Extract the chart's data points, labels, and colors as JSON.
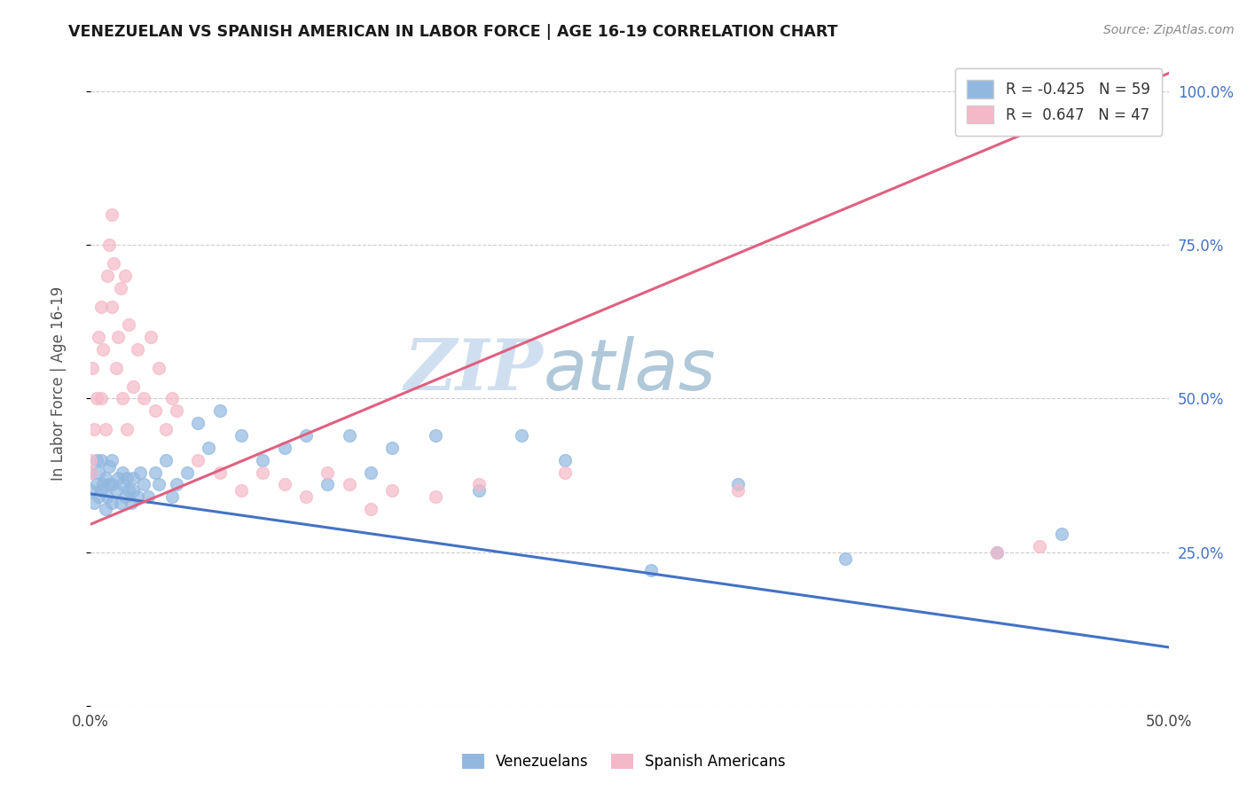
{
  "title": "VENEZUELAN VS SPANISH AMERICAN IN LABOR FORCE | AGE 16-19 CORRELATION CHART",
  "source": "Source: ZipAtlas.com",
  "ylabel_label": "In Labor Force | Age 16-19",
  "x_min": 0.0,
  "x_max": 0.5,
  "y_min": 0.0,
  "y_max": 1.05,
  "x_ticks": [
    0.0,
    0.1,
    0.2,
    0.3,
    0.4,
    0.5
  ],
  "x_tick_labels": [
    "0.0%",
    "",
    "",
    "",
    "",
    "50.0%"
  ],
  "y_ticks": [
    0.0,
    0.25,
    0.5,
    0.75,
    1.0
  ],
  "y_tick_labels_right": [
    "",
    "25.0%",
    "50.0%",
    "75.0%",
    "100.0%"
  ],
  "venezuelan_color": "#92b8e0",
  "spanish_color": "#f5b8c8",
  "venezuelan_line_color": "#4472c4",
  "spanish_line_color": "#e06080",
  "R_venezuelan": -0.425,
  "N_venezuelan": 59,
  "R_spanish": 0.647,
  "N_spanish": 47,
  "watermark_zip": "ZIP",
  "watermark_atlas": "atlas",
  "watermark_color": "#d0dff0",
  "watermark_color2": "#b0c8d8",
  "ven_line_x0": 0.0,
  "ven_line_y0": 0.345,
  "ven_line_x1": 0.5,
  "ven_line_y1": 0.095,
  "spa_line_x0": 0.0,
  "spa_line_y0": 0.295,
  "spa_line_x1": 0.5,
  "spa_line_y1": 1.03,
  "venezuelan_scatter_x": [
    0.0,
    0.0,
    0.002,
    0.003,
    0.003,
    0.004,
    0.004,
    0.005,
    0.005,
    0.006,
    0.007,
    0.007,
    0.008,
    0.009,
    0.009,
    0.01,
    0.01,
    0.01,
    0.012,
    0.013,
    0.014,
    0.015,
    0.015,
    0.016,
    0.017,
    0.018,
    0.019,
    0.02,
    0.02,
    0.022,
    0.023,
    0.025,
    0.027,
    0.03,
    0.032,
    0.035,
    0.038,
    0.04,
    0.045,
    0.05,
    0.055,
    0.06,
    0.07,
    0.08,
    0.09,
    0.1,
    0.11,
    0.12,
    0.13,
    0.14,
    0.16,
    0.18,
    0.2,
    0.22,
    0.26,
    0.3,
    0.35,
    0.42,
    0.45
  ],
  "venezuelan_scatter_y": [
    0.35,
    0.38,
    0.33,
    0.36,
    0.4,
    0.34,
    0.38,
    0.35,
    0.4,
    0.36,
    0.32,
    0.37,
    0.34,
    0.36,
    0.39,
    0.33,
    0.36,
    0.4,
    0.35,
    0.37,
    0.33,
    0.36,
    0.38,
    0.34,
    0.37,
    0.35,
    0.33,
    0.37,
    0.35,
    0.34,
    0.38,
    0.36,
    0.34,
    0.38,
    0.36,
    0.4,
    0.34,
    0.36,
    0.38,
    0.46,
    0.42,
    0.48,
    0.44,
    0.4,
    0.42,
    0.44,
    0.36,
    0.44,
    0.38,
    0.42,
    0.44,
    0.35,
    0.44,
    0.4,
    0.22,
    0.36,
    0.24,
    0.25,
    0.28
  ],
  "spanish_scatter_x": [
    0.0,
    0.0,
    0.001,
    0.002,
    0.003,
    0.004,
    0.005,
    0.005,
    0.006,
    0.007,
    0.008,
    0.009,
    0.01,
    0.01,
    0.011,
    0.012,
    0.013,
    0.014,
    0.015,
    0.016,
    0.017,
    0.018,
    0.02,
    0.022,
    0.025,
    0.028,
    0.03,
    0.032,
    0.035,
    0.038,
    0.04,
    0.05,
    0.06,
    0.07,
    0.08,
    0.09,
    0.1,
    0.11,
    0.12,
    0.13,
    0.14,
    0.16,
    0.18,
    0.22,
    0.3,
    0.42,
    0.44
  ],
  "spanish_scatter_y": [
    0.38,
    0.4,
    0.55,
    0.45,
    0.5,
    0.6,
    0.5,
    0.65,
    0.58,
    0.45,
    0.7,
    0.75,
    0.8,
    0.65,
    0.72,
    0.55,
    0.6,
    0.68,
    0.5,
    0.7,
    0.45,
    0.62,
    0.52,
    0.58,
    0.5,
    0.6,
    0.48,
    0.55,
    0.45,
    0.5,
    0.48,
    0.4,
    0.38,
    0.35,
    0.38,
    0.36,
    0.34,
    0.38,
    0.36,
    0.32,
    0.35,
    0.34,
    0.36,
    0.38,
    0.35,
    0.25,
    0.26
  ],
  "background_color": "#ffffff",
  "grid_color": "#cccccc"
}
